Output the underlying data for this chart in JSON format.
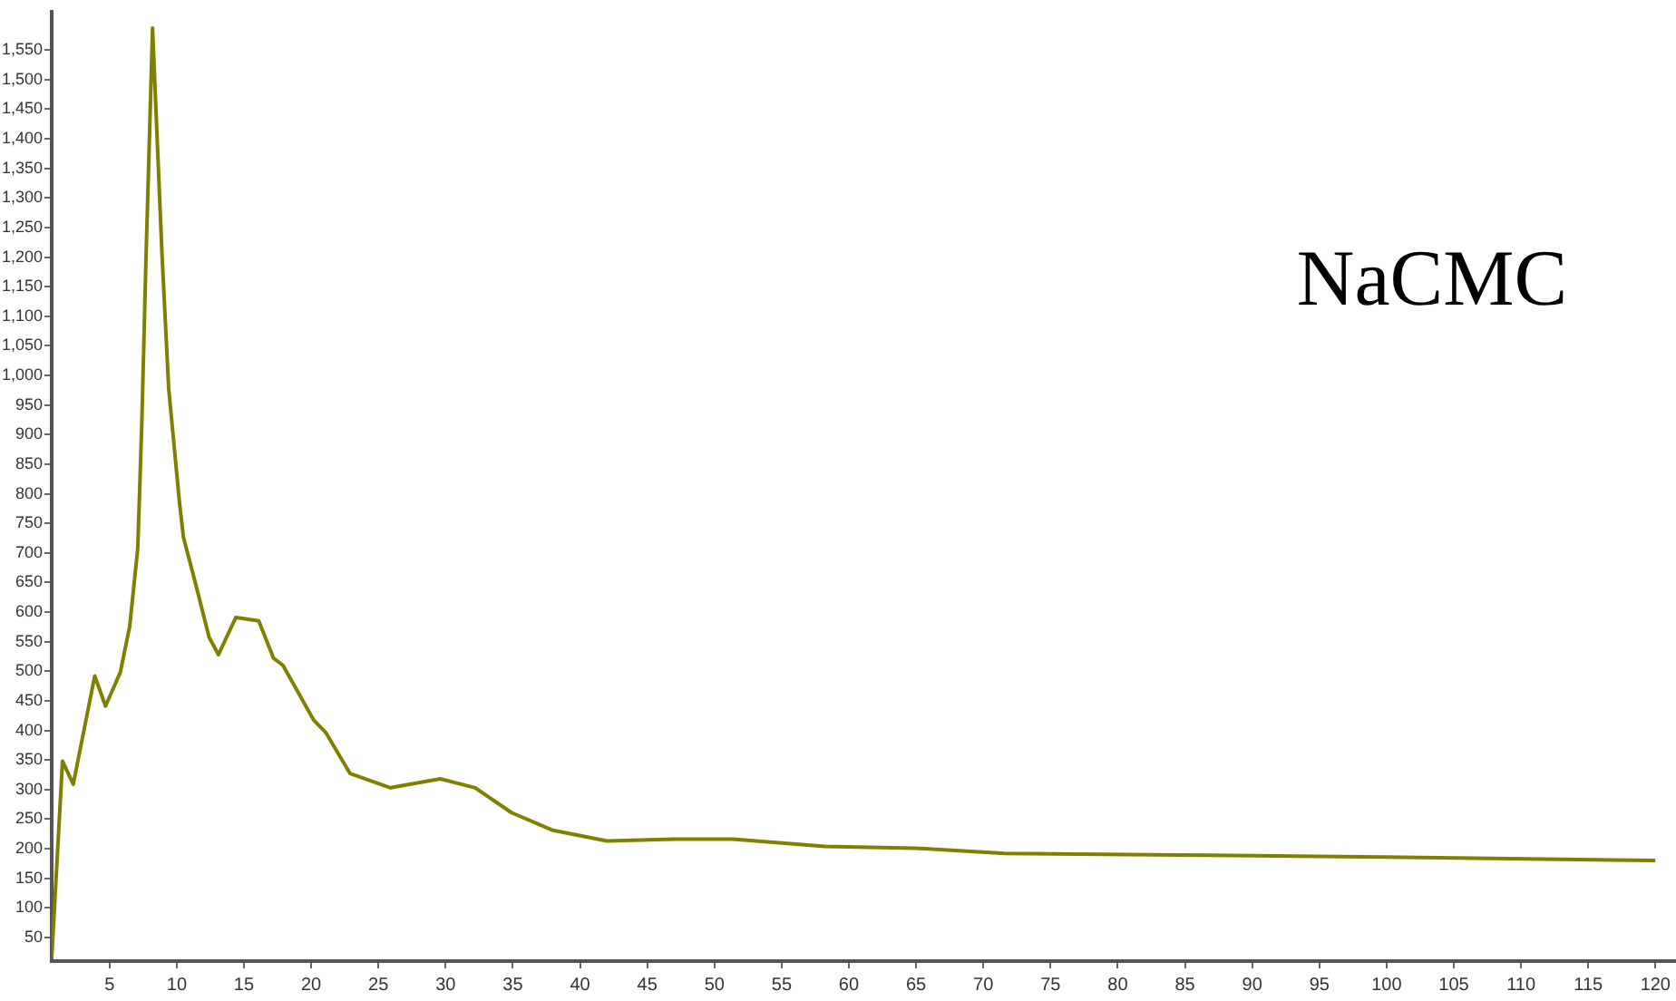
{
  "chart_data": {
    "type": "line",
    "annotations": [
      "NaCMC"
    ],
    "x": [
      0.7,
      1.5,
      2.3,
      3.9,
      4.7,
      5.8,
      6.5,
      7.1,
      7.4,
      7.7,
      8.2,
      8.9,
      9.4,
      10.2,
      10.5,
      11.4,
      12.4,
      13.1,
      13.9,
      14.4,
      16.1,
      17.2,
      17.9,
      20.2,
      21.1,
      22.9,
      25.9,
      29.6,
      32.2,
      34.9,
      38,
      42,
      47,
      51.4,
      58.2,
      64.9,
      71.6,
      86.9,
      100,
      120
    ],
    "series": [
      {
        "color": "#808000",
        "values": [
          15,
          348,
          309,
          492,
          441,
          498,
          576,
          708,
          918,
          1188,
          1587,
          1206,
          978,
          786,
          726,
          648,
          558,
          528,
          567,
          591,
          585,
          522,
          510,
          417,
          396,
          327,
          303,
          318,
          303,
          261,
          231,
          213,
          216,
          216,
          204,
          201,
          192,
          189,
          186,
          180
        ]
      }
    ],
    "xlim": [
      0.7,
      121.5
    ],
    "xticks": [
      5,
      10,
      15,
      20,
      25,
      30,
      35,
      40,
      45,
      50,
      55,
      60,
      65,
      70,
      75,
      80,
      85,
      90,
      95,
      100,
      105,
      110,
      115,
      120
    ],
    "ylim": [
      10,
      1615
    ],
    "yticks": [
      {
        "value": 50,
        "label": "50"
      },
      {
        "value": 100,
        "label": "100"
      },
      {
        "value": 150,
        "label": "150"
      },
      {
        "value": 200,
        "label": "200"
      },
      {
        "value": 250,
        "label": "250"
      },
      {
        "value": 300,
        "label": "300"
      },
      {
        "value": 350,
        "label": "350"
      },
      {
        "value": 400,
        "label": "400"
      },
      {
        "value": 450,
        "label": "450"
      },
      {
        "value": 500,
        "label": "500"
      },
      {
        "value": 550,
        "label": "550"
      },
      {
        "value": 600,
        "label": "600"
      },
      {
        "value": 650,
        "label": "650"
      },
      {
        "value": 700,
        "label": "700"
      },
      {
        "value": 750,
        "label": "750"
      },
      {
        "value": 800,
        "label": "800"
      },
      {
        "value": 850,
        "label": "850"
      },
      {
        "value": 900,
        "label": "900"
      },
      {
        "value": 950,
        "label": "950"
      },
      {
        "value": 1000,
        "label": "1,000"
      },
      {
        "value": 1050,
        "label": "1,050"
      },
      {
        "value": 1100,
        "label": "1,100"
      },
      {
        "value": 1150,
        "label": "1,150"
      },
      {
        "value": 1200,
        "label": "1,200"
      },
      {
        "value": 1250,
        "label": "1,250"
      },
      {
        "value": 1300,
        "label": "1,300"
      },
      {
        "value": 1350,
        "label": "1,350"
      },
      {
        "value": 1400,
        "label": "1,400"
      },
      {
        "value": 1450,
        "label": "1,450"
      },
      {
        "value": 1500,
        "label": "1,500"
      },
      {
        "value": 1550,
        "label": "1,550"
      }
    ],
    "grid": false,
    "legend": false,
    "marker": "none",
    "line_style": "solid"
  }
}
